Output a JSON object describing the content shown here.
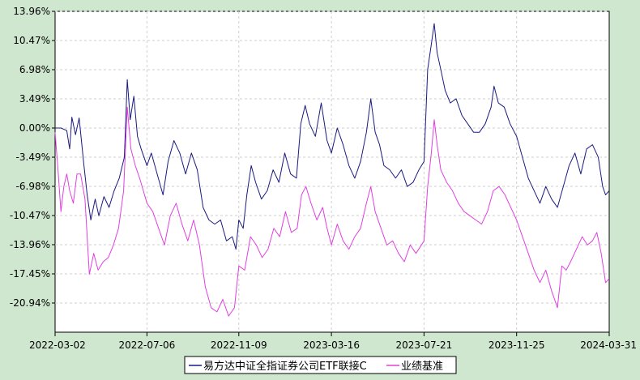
{
  "chart_data": {
    "type": "line",
    "title": "",
    "xlabel": "",
    "ylabel": "",
    "x_range": [
      "2022-03-02",
      "2024-03-31"
    ],
    "x_ticks": [
      "2022-03-02",
      "2022-07-06",
      "2022-11-09",
      "2023-03-16",
      "2023-07-21",
      "2023-11-25",
      "2024-03-31"
    ],
    "y_ticks": [
      13.96,
      10.47,
      6.98,
      3.49,
      0.0,
      -3.49,
      -6.98,
      -10.47,
      -13.96,
      -17.45,
      -20.94
    ],
    "y_tick_labels": [
      "13.96%",
      "10.47%",
      "6.98%",
      "3.49%",
      "0.00%",
      "-3.49%",
      "-6.98%",
      "-10.47%",
      "-13.96%",
      "-17.45%",
      "-20.94%"
    ],
    "ylim": [
      -24.43,
      13.96
    ],
    "grid": true,
    "legend_position": "bottom-center",
    "series": [
      {
        "name": "易方达中证全指证券公司ETF联接C",
        "color": "#1a1a80",
        "points": [
          [
            "2022-03-02",
            0.0
          ],
          [
            "2022-03-10",
            0.0
          ],
          [
            "2022-03-18",
            -0.3
          ],
          [
            "2022-03-22",
            -2.5
          ],
          [
            "2022-03-25",
            1.3
          ],
          [
            "2022-03-30",
            -0.8
          ],
          [
            "2022-04-04",
            1.2
          ],
          [
            "2022-04-10",
            -4.0
          ],
          [
            "2022-04-15",
            -8.0
          ],
          [
            "2022-04-20",
            -11.0
          ],
          [
            "2022-04-26",
            -8.5
          ],
          [
            "2022-05-01",
            -10.5
          ],
          [
            "2022-05-08",
            -8.2
          ],
          [
            "2022-05-15",
            -9.5
          ],
          [
            "2022-05-22",
            -7.5
          ],
          [
            "2022-05-29",
            -6.0
          ],
          [
            "2022-06-05",
            -3.5
          ],
          [
            "2022-06-09",
            5.8
          ],
          [
            "2022-06-13",
            1.0
          ],
          [
            "2022-06-18",
            3.8
          ],
          [
            "2022-06-23",
            -1.0
          ],
          [
            "2022-06-28",
            -2.5
          ],
          [
            "2022-07-06",
            -4.5
          ],
          [
            "2022-07-12",
            -3.0
          ],
          [
            "2022-07-20",
            -5.5
          ],
          [
            "2022-07-28",
            -8.0
          ],
          [
            "2022-08-04",
            -4.0
          ],
          [
            "2022-08-12",
            -1.5
          ],
          [
            "2022-08-20",
            -3.0
          ],
          [
            "2022-08-28",
            -5.5
          ],
          [
            "2022-09-05",
            -3.0
          ],
          [
            "2022-09-13",
            -5.0
          ],
          [
            "2022-09-21",
            -9.5
          ],
          [
            "2022-09-29",
            -11.0
          ],
          [
            "2022-10-07",
            -11.5
          ],
          [
            "2022-10-15",
            -11.0
          ],
          [
            "2022-10-23",
            -13.5
          ],
          [
            "2022-10-31",
            -13.0
          ],
          [
            "2022-11-05",
            -14.5
          ],
          [
            "2022-11-09",
            -11.0
          ],
          [
            "2022-11-15",
            -12.0
          ],
          [
            "2022-11-20",
            -8.0
          ],
          [
            "2022-11-26",
            -4.5
          ],
          [
            "2022-12-02",
            -6.5
          ],
          [
            "2022-12-10",
            -8.5
          ],
          [
            "2022-12-18",
            -7.5
          ],
          [
            "2022-12-26",
            -5.0
          ],
          [
            "2023-01-03",
            -6.5
          ],
          [
            "2023-01-11",
            -3.0
          ],
          [
            "2023-01-19",
            -5.5
          ],
          [
            "2023-01-27",
            -6.0
          ],
          [
            "2023-02-02",
            0.5
          ],
          [
            "2023-02-08",
            2.7
          ],
          [
            "2023-02-14",
            0.5
          ],
          [
            "2023-02-22",
            -1.0
          ],
          [
            "2023-03-02",
            3.0
          ],
          [
            "2023-03-10",
            -1.5
          ],
          [
            "2023-03-16",
            -3.0
          ],
          [
            "2023-03-24",
            0.0
          ],
          [
            "2023-04-01",
            -2.0
          ],
          [
            "2023-04-09",
            -4.5
          ],
          [
            "2023-04-17",
            -6.0
          ],
          [
            "2023-04-25",
            -4.0
          ],
          [
            "2023-05-03",
            -0.5
          ],
          [
            "2023-05-09",
            3.5
          ],
          [
            "2023-05-15",
            -0.5
          ],
          [
            "2023-05-21",
            -2.0
          ],
          [
            "2023-05-27",
            -4.5
          ],
          [
            "2023-06-04",
            -5.0
          ],
          [
            "2023-06-12",
            -6.0
          ],
          [
            "2023-06-20",
            -5.0
          ],
          [
            "2023-06-28",
            -7.0
          ],
          [
            "2023-07-06",
            -6.5
          ],
          [
            "2023-07-14",
            -5.0
          ],
          [
            "2023-07-21",
            -4.0
          ],
          [
            "2023-07-26",
            7.0
          ],
          [
            "2023-07-31",
            10.0
          ],
          [
            "2023-08-04",
            12.5
          ],
          [
            "2023-08-08",
            9.0
          ],
          [
            "2023-08-13",
            7.0
          ],
          [
            "2023-08-19",
            4.5
          ],
          [
            "2023-08-26",
            3.0
          ],
          [
            "2023-09-03",
            3.5
          ],
          [
            "2023-09-11",
            1.5
          ],
          [
            "2023-09-19",
            0.5
          ],
          [
            "2023-09-27",
            -0.5
          ],
          [
            "2023-10-05",
            -0.5
          ],
          [
            "2023-10-13",
            0.5
          ],
          [
            "2023-10-21",
            2.5
          ],
          [
            "2023-10-25",
            5.0
          ],
          [
            "2023-10-31",
            3.0
          ],
          [
            "2023-11-08",
            2.5
          ],
          [
            "2023-11-16",
            0.5
          ],
          [
            "2023-11-25",
            -1.0
          ],
          [
            "2023-12-03",
            -3.5
          ],
          [
            "2023-12-11",
            -6.0
          ],
          [
            "2023-12-19",
            -7.5
          ],
          [
            "2023-12-27",
            -9.0
          ],
          [
            "2024-01-04",
            -7.0
          ],
          [
            "2024-01-12",
            -8.5
          ],
          [
            "2024-01-20",
            -9.5
          ],
          [
            "2024-01-28",
            -7.0
          ],
          [
            "2024-02-05",
            -4.5
          ],
          [
            "2024-02-13",
            -3.0
          ],
          [
            "2024-02-21",
            -5.5
          ],
          [
            "2024-02-29",
            -2.5
          ],
          [
            "2024-03-08",
            -2.0
          ],
          [
            "2024-03-16",
            -3.5
          ],
          [
            "2024-03-22",
            -7.0
          ],
          [
            "2024-03-26",
            -8.0
          ],
          [
            "2024-03-31",
            -7.5
          ]
        ]
      },
      {
        "name": "业绩基准",
        "color": "#e040e0",
        "points": [
          [
            "2022-03-02",
            -0.5
          ],
          [
            "2022-03-06",
            -5.0
          ],
          [
            "2022-03-10",
            -10.0
          ],
          [
            "2022-03-14",
            -7.0
          ],
          [
            "2022-03-18",
            -5.5
          ],
          [
            "2022-03-22",
            -7.5
          ],
          [
            "2022-03-27",
            -9.0
          ],
          [
            "2022-04-01",
            -5.5
          ],
          [
            "2022-04-06",
            -5.5
          ],
          [
            "2022-04-12",
            -8.5
          ],
          [
            "2022-04-18",
            -17.5
          ],
          [
            "2022-04-24",
            -15.0
          ],
          [
            "2022-04-30",
            -17.0
          ],
          [
            "2022-05-07",
            -16.0
          ],
          [
            "2022-05-14",
            -15.5
          ],
          [
            "2022-05-21",
            -14.0
          ],
          [
            "2022-05-28",
            -12.0
          ],
          [
            "2022-06-04",
            -7.5
          ],
          [
            "2022-06-09",
            2.5
          ],
          [
            "2022-06-14",
            -2.5
          ],
          [
            "2022-06-20",
            -4.5
          ],
          [
            "2022-06-26",
            -6.0
          ],
          [
            "2022-07-06",
            -9.0
          ],
          [
            "2022-07-14",
            -10.0
          ],
          [
            "2022-07-22",
            -12.0
          ],
          [
            "2022-07-30",
            -14.0
          ],
          [
            "2022-08-07",
            -10.5
          ],
          [
            "2022-08-15",
            -9.0
          ],
          [
            "2022-08-23",
            -11.5
          ],
          [
            "2022-08-31",
            -13.5
          ],
          [
            "2022-09-08",
            -11.0
          ],
          [
            "2022-09-16",
            -14.0
          ],
          [
            "2022-09-24",
            -19.0
          ],
          [
            "2022-10-02",
            -21.5
          ],
          [
            "2022-10-10",
            -22.0
          ],
          [
            "2022-10-18",
            -20.5
          ],
          [
            "2022-10-26",
            -22.5
          ],
          [
            "2022-11-03",
            -21.5
          ],
          [
            "2022-11-09",
            -16.5
          ],
          [
            "2022-11-17",
            -17.0
          ],
          [
            "2022-11-25",
            -13.0
          ],
          [
            "2022-12-03",
            -14.0
          ],
          [
            "2022-12-11",
            -15.5
          ],
          [
            "2022-12-19",
            -14.5
          ],
          [
            "2022-12-27",
            -12.0
          ],
          [
            "2023-01-04",
            -13.0
          ],
          [
            "2023-01-12",
            -10.0
          ],
          [
            "2023-01-20",
            -12.5
          ],
          [
            "2023-01-28",
            -12.0
          ],
          [
            "2023-02-03",
            -8.0
          ],
          [
            "2023-02-09",
            -7.0
          ],
          [
            "2023-02-16",
            -9.0
          ],
          [
            "2023-02-24",
            -11.0
          ],
          [
            "2023-03-04",
            -9.5
          ],
          [
            "2023-03-10",
            -12.0
          ],
          [
            "2023-03-16",
            -14.0
          ],
          [
            "2023-03-24",
            -11.5
          ],
          [
            "2023-04-01",
            -13.5
          ],
          [
            "2023-04-09",
            -14.5
          ],
          [
            "2023-04-17",
            -13.0
          ],
          [
            "2023-04-25",
            -12.0
          ],
          [
            "2023-05-03",
            -9.0
          ],
          [
            "2023-05-09",
            -7.0
          ],
          [
            "2023-05-15",
            -10.0
          ],
          [
            "2023-05-23",
            -12.0
          ],
          [
            "2023-05-31",
            -14.0
          ],
          [
            "2023-06-08",
            -13.5
          ],
          [
            "2023-06-16",
            -15.0
          ],
          [
            "2023-06-24",
            -16.0
          ],
          [
            "2023-07-02",
            -14.0
          ],
          [
            "2023-07-10",
            -15.0
          ],
          [
            "2023-07-21",
            -13.5
          ],
          [
            "2023-07-26",
            -7.0
          ],
          [
            "2023-07-31",
            -3.0
          ],
          [
            "2023-08-04",
            1.0
          ],
          [
            "2023-08-08",
            -2.0
          ],
          [
            "2023-08-13",
            -5.0
          ],
          [
            "2023-08-21",
            -6.5
          ],
          [
            "2023-08-29",
            -7.5
          ],
          [
            "2023-09-06",
            -9.0
          ],
          [
            "2023-09-14",
            -10.0
          ],
          [
            "2023-09-22",
            -10.5
          ],
          [
            "2023-09-30",
            -11.0
          ],
          [
            "2023-10-08",
            -11.5
          ],
          [
            "2023-10-16",
            -10.0
          ],
          [
            "2023-10-24",
            -7.5
          ],
          [
            "2023-11-01",
            -7.0
          ],
          [
            "2023-11-09",
            -8.0
          ],
          [
            "2023-11-17",
            -9.5
          ],
          [
            "2023-11-25",
            -11.0
          ],
          [
            "2023-12-03",
            -13.0
          ],
          [
            "2023-12-11",
            -15.0
          ],
          [
            "2023-12-19",
            -17.0
          ],
          [
            "2023-12-27",
            -18.5
          ],
          [
            "2024-01-04",
            -17.0
          ],
          [
            "2024-01-12",
            -19.5
          ],
          [
            "2024-01-20",
            -21.5
          ],
          [
            "2024-01-26",
            -16.5
          ],
          [
            "2024-02-01",
            -17.0
          ],
          [
            "2024-02-07",
            -16.0
          ],
          [
            "2024-02-15",
            -14.5
          ],
          [
            "2024-02-23",
            -13.0
          ],
          [
            "2024-03-01",
            -14.0
          ],
          [
            "2024-03-08",
            -13.5
          ],
          [
            "2024-03-14",
            -12.5
          ],
          [
            "2024-03-20",
            -15.0
          ],
          [
            "2024-03-26",
            -18.5
          ],
          [
            "2024-03-31",
            -18.0
          ]
        ]
      }
    ]
  }
}
